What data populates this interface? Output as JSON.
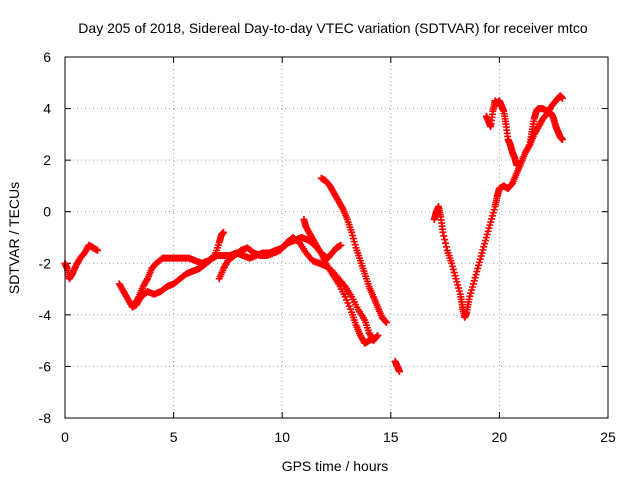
{
  "chart_data": {
    "type": "scatter",
    "title": "Day 205 of 2018, Sidereal Day-to-day VTEC variation (SDTVAR) for receiver mtco",
    "xlabel": "GPS time / hours",
    "ylabel": "SDTVAR / TECUs",
    "xlim": [
      0,
      25
    ],
    "ylim": [
      -8,
      6
    ],
    "xticks": [
      0,
      5,
      10,
      15,
      20,
      25
    ],
    "yticks": [
      -8,
      -6,
      -4,
      -2,
      0,
      2,
      4,
      6
    ],
    "grid": true,
    "marker": "+",
    "color": "#ff0000",
    "segments": [
      {
        "name": "seg-a",
        "points": [
          [
            0.0,
            -2.0
          ],
          [
            0.1,
            -2.2
          ],
          [
            0.2,
            -2.6
          ],
          [
            0.35,
            -2.4
          ],
          [
            0.5,
            -2.1
          ],
          [
            0.7,
            -1.8
          ],
          [
            0.9,
            -1.6
          ],
          [
            1.1,
            -1.3
          ],
          [
            1.3,
            -1.4
          ],
          [
            1.5,
            -1.5
          ]
        ]
      },
      {
        "name": "seg-b",
        "points": [
          [
            2.5,
            -2.8
          ],
          [
            2.7,
            -3.1
          ],
          [
            2.9,
            -3.4
          ],
          [
            3.1,
            -3.7
          ],
          [
            3.3,
            -3.6
          ],
          [
            3.5,
            -3.3
          ],
          [
            3.8,
            -3.1
          ],
          [
            4.1,
            -3.2
          ],
          [
            4.4,
            -3.1
          ],
          [
            4.7,
            -2.9
          ],
          [
            5.0,
            -2.8
          ],
          [
            5.3,
            -2.6
          ],
          [
            5.6,
            -2.4
          ],
          [
            5.9,
            -2.3
          ],
          [
            6.2,
            -2.2
          ],
          [
            6.5,
            -2.0
          ],
          [
            6.8,
            -1.8
          ],
          [
            7.0,
            -1.7
          ],
          [
            7.3,
            -1.7
          ],
          [
            7.6,
            -1.7
          ],
          [
            7.9,
            -1.6
          ],
          [
            8.2,
            -1.7
          ],
          [
            8.5,
            -1.8
          ],
          [
            8.8,
            -1.7
          ],
          [
            9.1,
            -1.6
          ],
          [
            9.4,
            -1.6
          ],
          [
            9.7,
            -1.5
          ],
          [
            10.0,
            -1.4
          ],
          [
            10.3,
            -1.2
          ],
          [
            10.6,
            -1.1
          ],
          [
            10.9,
            -1.0
          ],
          [
            11.2,
            -1.1
          ],
          [
            11.5,
            -1.3
          ],
          [
            11.8,
            -1.6
          ],
          [
            12.0,
            -2.0
          ],
          [
            12.3,
            -2.4
          ],
          [
            12.6,
            -2.8
          ],
          [
            12.9,
            -3.3
          ],
          [
            13.2,
            -3.9
          ],
          [
            13.4,
            -4.4
          ],
          [
            13.6,
            -4.8
          ],
          [
            13.8,
            -5.1
          ],
          [
            14.0,
            -5.0
          ],
          [
            14.2,
            -4.9
          ]
        ]
      },
      {
        "name": "seg-c",
        "points": [
          [
            3.2,
            -3.6
          ],
          [
            3.4,
            -3.3
          ],
          [
            3.6,
            -2.9
          ],
          [
            3.8,
            -2.6
          ],
          [
            4.0,
            -2.2
          ],
          [
            4.2,
            -2.0
          ],
          [
            4.5,
            -1.8
          ],
          [
            4.8,
            -1.8
          ],
          [
            5.1,
            -1.8
          ],
          [
            5.4,
            -1.8
          ],
          [
            5.7,
            -1.8
          ],
          [
            6.0,
            -1.9
          ],
          [
            6.3,
            -2.0
          ],
          [
            6.6,
            -1.9
          ],
          [
            6.9,
            -1.7
          ],
          [
            7.1,
            -1.2
          ],
          [
            7.2,
            -0.9
          ],
          [
            7.3,
            -0.8
          ]
        ]
      },
      {
        "name": "seg-d",
        "points": [
          [
            7.1,
            -2.6
          ],
          [
            7.3,
            -2.2
          ],
          [
            7.5,
            -1.9
          ],
          [
            7.8,
            -1.7
          ],
          [
            8.1,
            -1.5
          ],
          [
            8.4,
            -1.4
          ],
          [
            8.7,
            -1.6
          ],
          [
            9.0,
            -1.7
          ],
          [
            9.3,
            -1.7
          ],
          [
            9.6,
            -1.6
          ],
          [
            9.9,
            -1.5
          ],
          [
            10.2,
            -1.2
          ],
          [
            10.5,
            -1.0
          ],
          [
            10.8,
            -1.2
          ],
          [
            11.1,
            -1.6
          ],
          [
            11.4,
            -1.9
          ],
          [
            11.7,
            -2.0
          ],
          [
            12.0,
            -2.1
          ],
          [
            12.3,
            -2.3
          ],
          [
            12.6,
            -2.6
          ],
          [
            12.9,
            -2.9
          ],
          [
            13.2,
            -3.3
          ],
          [
            13.5,
            -3.8
          ],
          [
            13.8,
            -4.2
          ],
          [
            14.0,
            -4.7
          ],
          [
            14.2,
            -5.0
          ],
          [
            14.4,
            -4.8
          ]
        ]
      },
      {
        "name": "seg-e",
        "points": [
          [
            11.0,
            -0.3
          ],
          [
            11.1,
            -0.6
          ],
          [
            11.3,
            -0.9
          ],
          [
            11.5,
            -1.2
          ],
          [
            11.7,
            -1.5
          ],
          [
            11.9,
            -1.7
          ],
          [
            12.1,
            -1.8
          ],
          [
            12.3,
            -1.6
          ],
          [
            12.5,
            -1.4
          ],
          [
            12.7,
            -1.3
          ]
        ]
      },
      {
        "name": "seg-f",
        "points": [
          [
            11.8,
            1.3
          ],
          [
            12.0,
            1.2
          ],
          [
            12.2,
            1.0
          ],
          [
            12.4,
            0.7
          ],
          [
            12.6,
            0.4
          ],
          [
            12.8,
            0.1
          ],
          [
            13.0,
            -0.3
          ],
          [
            13.2,
            -0.8
          ],
          [
            13.4,
            -1.4
          ],
          [
            13.6,
            -1.9
          ],
          [
            13.8,
            -2.4
          ],
          [
            14.0,
            -2.9
          ],
          [
            14.2,
            -3.3
          ],
          [
            14.4,
            -3.7
          ],
          [
            14.6,
            -4.1
          ],
          [
            14.8,
            -4.3
          ]
        ]
      },
      {
        "name": "seg-g",
        "points": [
          [
            15.2,
            -5.8
          ],
          [
            15.3,
            -6.0
          ],
          [
            15.4,
            -6.2
          ]
        ]
      },
      {
        "name": "seg-h",
        "points": [
          [
            17.0,
            -0.3
          ],
          [
            17.1,
            0.0
          ],
          [
            17.2,
            0.2
          ],
          [
            17.3,
            -0.2
          ],
          [
            17.4,
            -0.8
          ],
          [
            17.6,
            -1.5
          ],
          [
            17.8,
            -2.0
          ],
          [
            18.0,
            -2.6
          ],
          [
            18.2,
            -3.2
          ],
          [
            18.3,
            -3.7
          ],
          [
            18.4,
            -4.1
          ],
          [
            18.5,
            -3.9
          ],
          [
            18.6,
            -3.4
          ],
          [
            18.8,
            -2.8
          ],
          [
            19.0,
            -2.2
          ],
          [
            19.2,
            -1.6
          ],
          [
            19.4,
            -1.0
          ],
          [
            19.6,
            -0.4
          ],
          [
            19.8,
            0.2
          ],
          [
            19.9,
            0.6
          ],
          [
            20.0,
            0.9
          ],
          [
            20.2,
            1.0
          ],
          [
            20.4,
            0.9
          ],
          [
            20.6,
            1.1
          ],
          [
            20.8,
            1.5
          ],
          [
            21.0,
            1.9
          ],
          [
            21.2,
            2.3
          ],
          [
            21.4,
            2.6
          ],
          [
            21.6,
            3.0
          ],
          [
            21.8,
            3.3
          ],
          [
            22.0,
            3.6
          ],
          [
            22.2,
            3.8
          ],
          [
            22.4,
            4.1
          ],
          [
            22.6,
            4.3
          ],
          [
            22.8,
            4.5
          ],
          [
            22.9,
            4.4
          ]
        ]
      },
      {
        "name": "seg-i",
        "points": [
          [
            19.4,
            3.7
          ],
          [
            19.5,
            3.5
          ],
          [
            19.6,
            3.3
          ],
          [
            19.7,
            3.9
          ],
          [
            19.8,
            4.3
          ],
          [
            19.9,
            4.2
          ],
          [
            20.0,
            4.3
          ],
          [
            20.1,
            4.1
          ],
          [
            20.2,
            3.9
          ],
          [
            20.3,
            3.4
          ],
          [
            20.4,
            2.8
          ],
          [
            20.5,
            2.6
          ],
          [
            20.6,
            2.3
          ],
          [
            20.7,
            2.1
          ],
          [
            20.8,
            1.8
          ]
        ]
      },
      {
        "name": "seg-j",
        "points": [
          [
            21.4,
            2.6
          ],
          [
            21.5,
            3.1
          ],
          [
            21.6,
            3.6
          ],
          [
            21.7,
            3.9
          ],
          [
            21.8,
            4.0
          ],
          [
            22.0,
            4.0
          ],
          [
            22.2,
            3.9
          ],
          [
            22.4,
            3.8
          ],
          [
            22.5,
            3.6
          ],
          [
            22.6,
            3.3
          ],
          [
            22.7,
            3.1
          ],
          [
            22.8,
            2.9
          ],
          [
            22.9,
            2.8
          ]
        ]
      }
    ]
  }
}
